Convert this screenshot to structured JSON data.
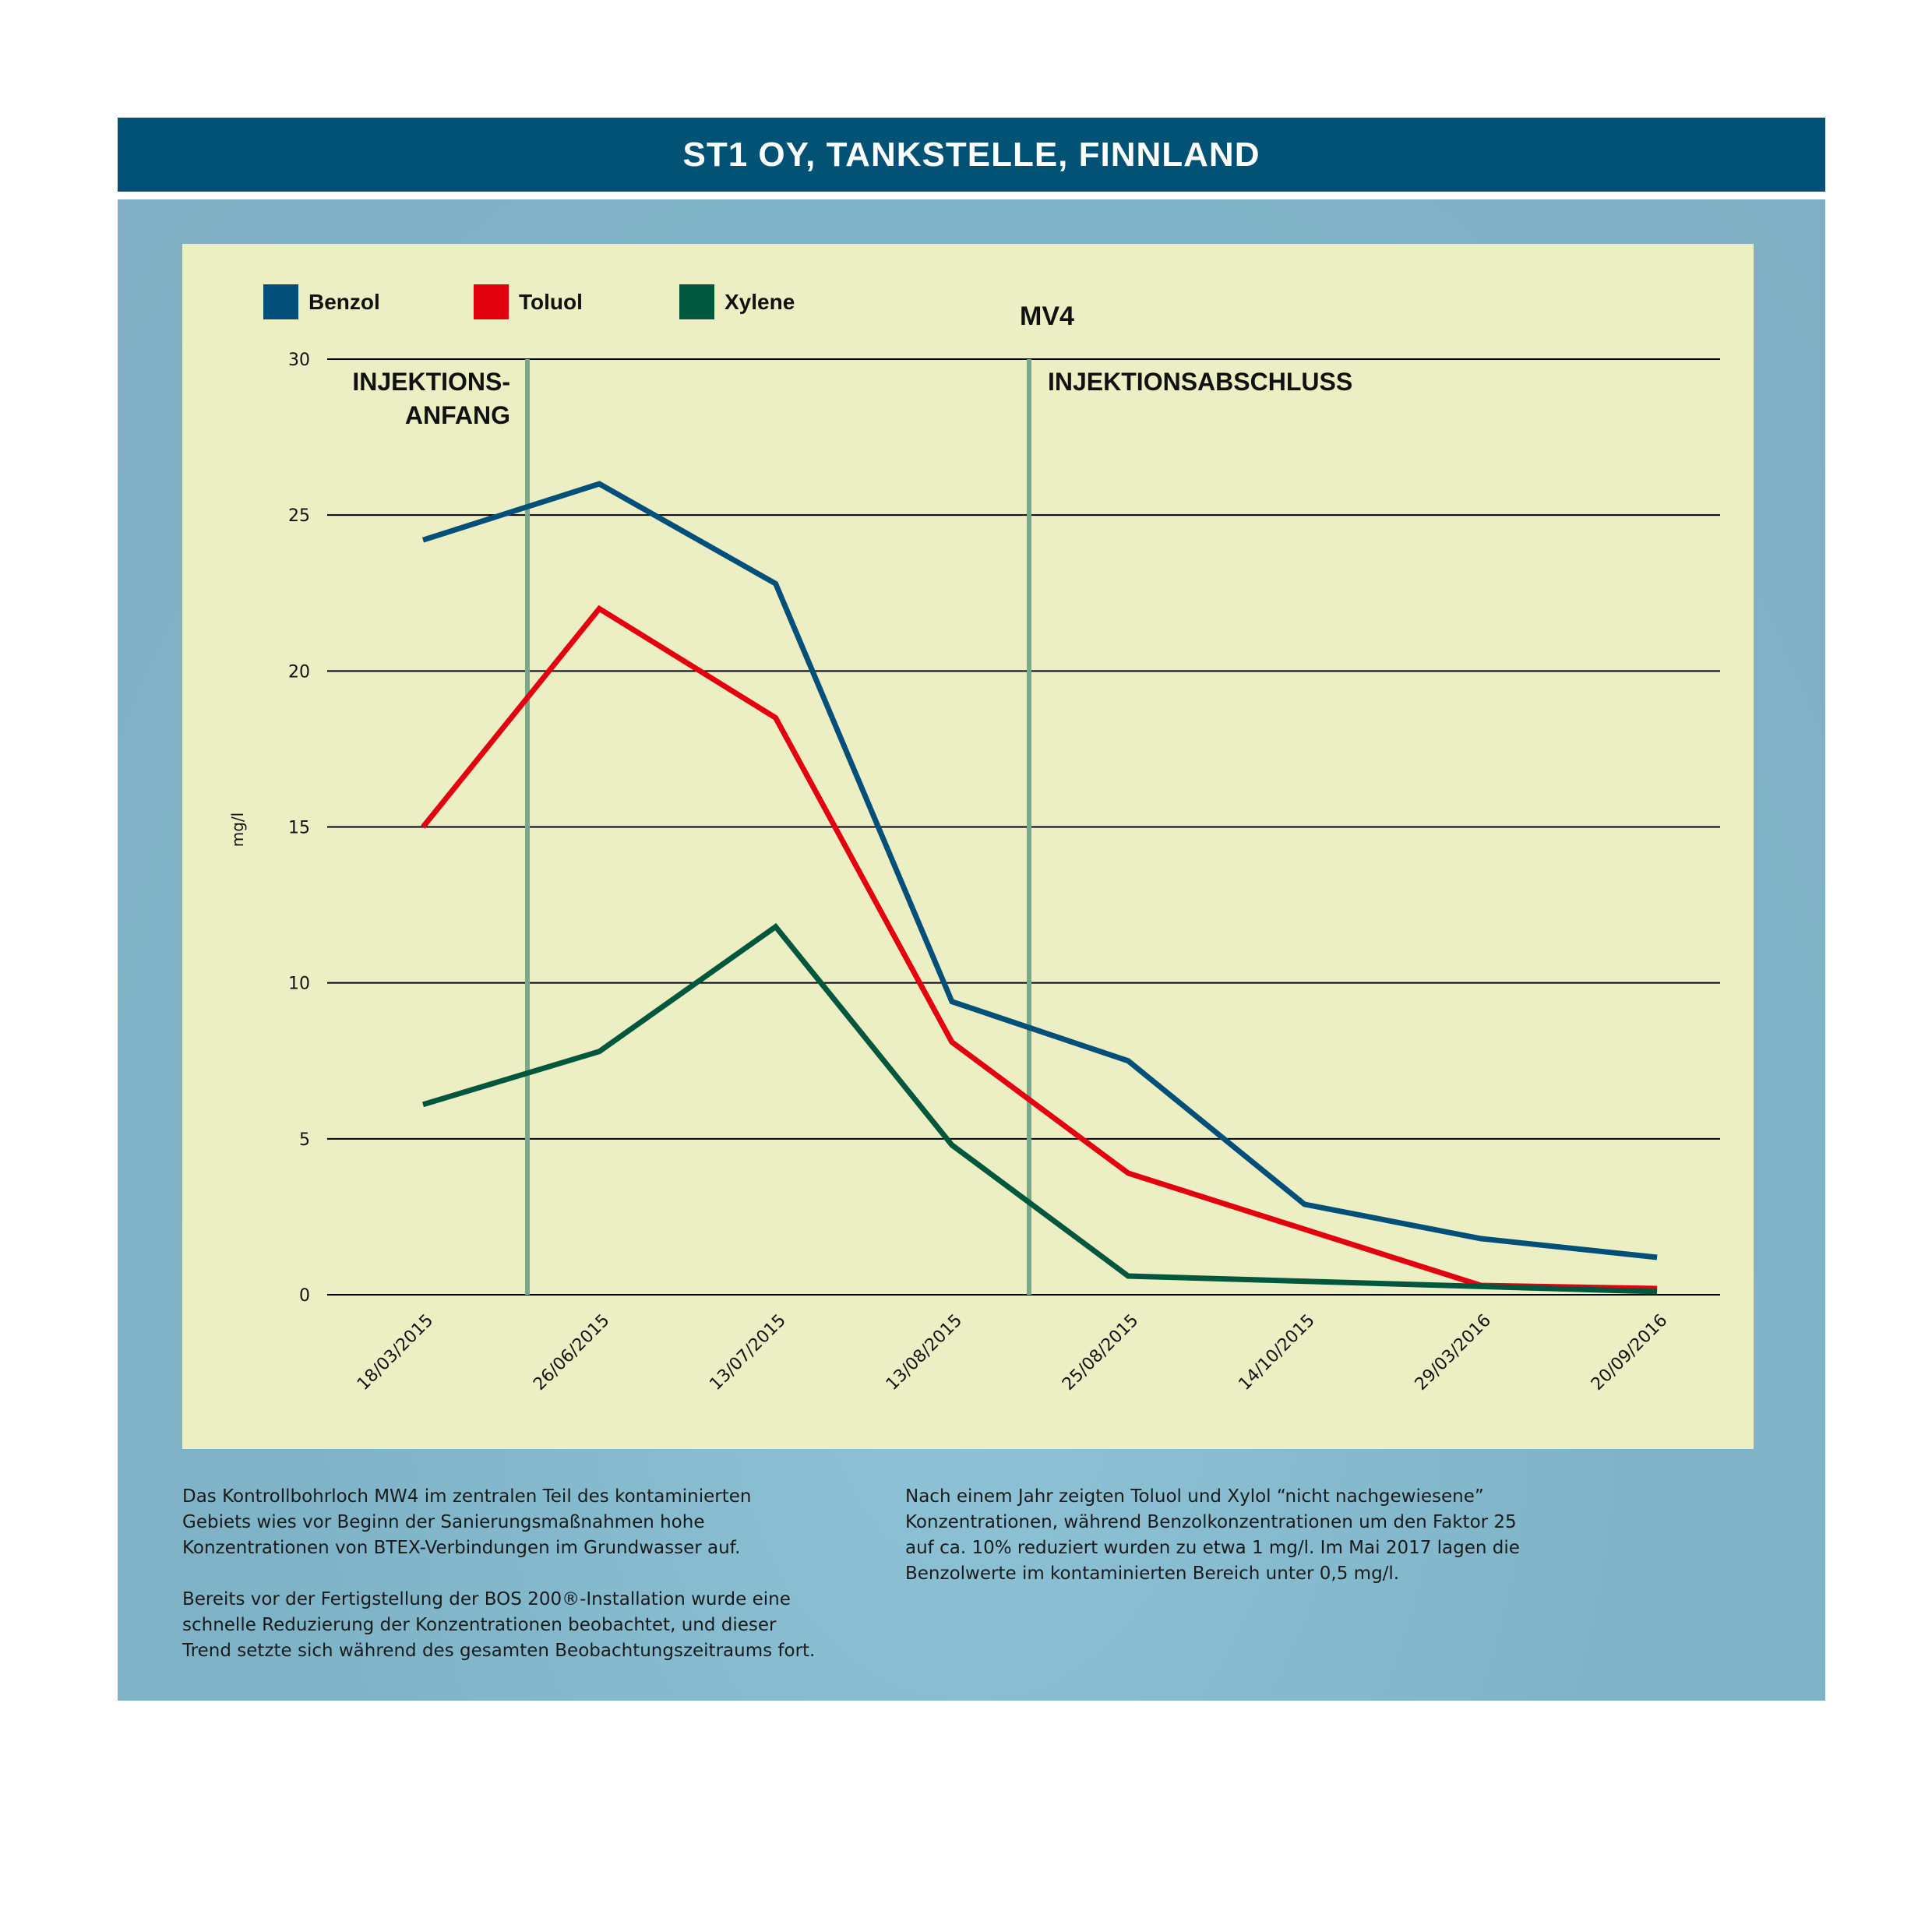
{
  "header": {
    "title": "ST1 OY, TANKSTELLE, FINNLAND"
  },
  "chart_data": {
    "type": "line",
    "title": "MV4",
    "ylabel": "mg/l",
    "xlabel": "",
    "ylim": [
      0,
      30
    ],
    "yticks": [
      0,
      5,
      10,
      15,
      20,
      25,
      30
    ],
    "grid": true,
    "legend_position": "top-left",
    "categories": [
      "18/03/2015",
      "26/06/2015",
      "13/07/2015",
      "13/08/2015",
      "25/08/2015",
      "14/10/2015",
      "29/03/2016",
      "20/09/2016"
    ],
    "series": [
      {
        "name": "Benzol",
        "color": "#02507a",
        "values": [
          24.2,
          26.0,
          22.8,
          9.4,
          7.5,
          2.9,
          1.8,
          1.2
        ]
      },
      {
        "name": "Toluol",
        "color": "#e3000f",
        "values": [
          15.0,
          22.0,
          18.5,
          8.1,
          3.9,
          null,
          0.3,
          0.2
        ]
      },
      {
        "name": "Xylene",
        "color": "#00573d",
        "values": [
          6.1,
          7.8,
          11.8,
          4.8,
          0.6,
          null,
          null,
          0.1
        ]
      }
    ],
    "annotations": [
      {
        "lines": [
          "INJEKTIONS-",
          "ANFANG"
        ],
        "between": [
          "18/03/2015",
          "26/06/2015"
        ],
        "color": "#77a98a"
      },
      {
        "lines": [
          "INJEKTIONSABSCHLUSS"
        ],
        "between": [
          "13/08/2015",
          "25/08/2015"
        ],
        "color": "#77a98a"
      }
    ]
  },
  "description": {
    "left": [
      "Das Kontrollbohrloch MW4 im zentralen Teil des kontaminierten\nGebiets wies vor Beginn der Sanierungsmaßnahmen hohe\nKonzentrationen von BTEX-Verbindungen im Grundwasser auf.",
      "Bereits vor der Fertigstellung der BOS 200®-Installation wurde eine\nschnelle Reduzierung der Konzentrationen beobachtet, und dieser\nTrend setzte sich während des gesamten Beobachtungszeitraums fort."
    ],
    "right": [
      "Nach einem Jahr zeigten Toluol und Xylol “nicht nachgewiesene”\nKonzentrationen, während Benzolkonzentrationen um den Faktor 25\nauf ca. 10% reduziert wurden zu etwa 1 mg/l. Im Mai 2017 lagen die\nBenzolwerte im kontaminierten Bereich unter 0,5 mg/l."
    ]
  }
}
